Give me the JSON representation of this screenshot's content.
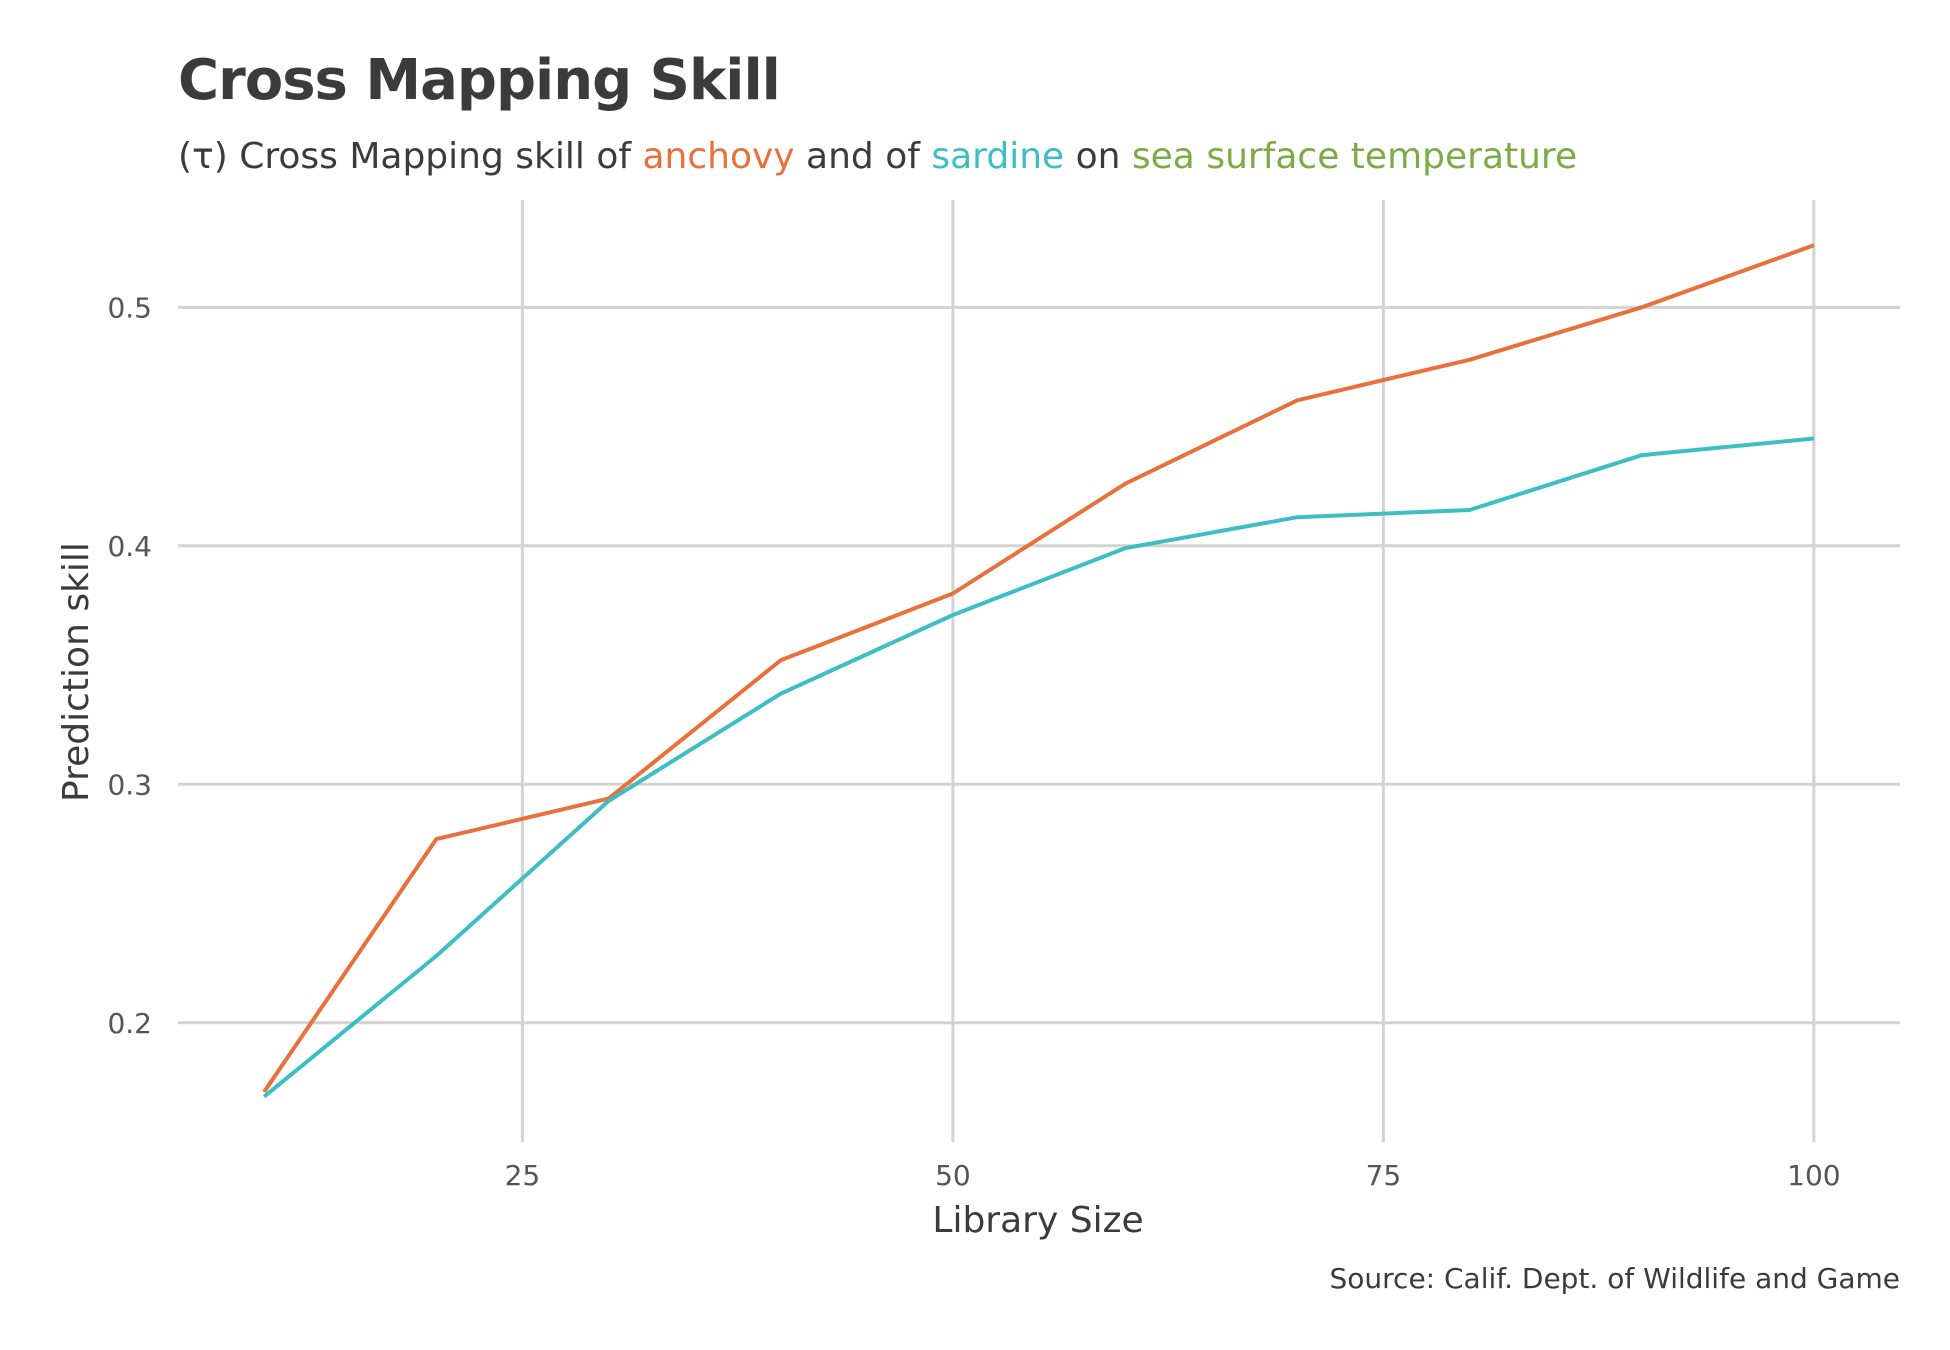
{
  "title": "Cross Mapping Skill",
  "subtitle": {
    "prefix": "(τ) Cross Mapping skill of ",
    "anchovy": "anchovy",
    "mid1": " and of ",
    "sardine": "sardine",
    "mid2": " on ",
    "sst": "sea surface temperature"
  },
  "caption": "Source: Calif. Dept. of Wildlife and Game",
  "colors": {
    "anchovy": "#e8703a",
    "sardine": "#3dbec5",
    "sst": "#7bab45",
    "grid": "#d3d3d3"
  },
  "chart_data": {
    "type": "line",
    "title": "Cross Mapping Skill",
    "xlabel": "Library Size",
    "ylabel": "Prediction skill",
    "xlim": [
      5,
      105
    ],
    "ylim": [
      0.15,
      0.545
    ],
    "x_ticks": [
      25,
      50,
      75,
      100
    ],
    "y_ticks": [
      0.2,
      0.3,
      0.4,
      0.5
    ],
    "x_tick_labels": [
      "25",
      "50",
      "75",
      "100"
    ],
    "y_tick_labels": [
      "0.2",
      "0.3",
      "0.4",
      "0.5"
    ],
    "grid": true,
    "legend": "none",
    "x": [
      10,
      20,
      30,
      40,
      50,
      60,
      70,
      80,
      90,
      100
    ],
    "series": [
      {
        "name": "anchovy",
        "color": "#e8703a",
        "values": [
          0.171,
          0.277,
          0.294,
          0.352,
          0.38,
          0.426,
          0.461,
          0.478,
          0.5,
          0.526
        ]
      },
      {
        "name": "sardine",
        "color": "#3dbec5",
        "values": [
          0.169,
          0.228,
          0.293,
          0.338,
          0.371,
          0.399,
          0.412,
          0.415,
          0.438,
          0.445
        ]
      }
    ]
  }
}
